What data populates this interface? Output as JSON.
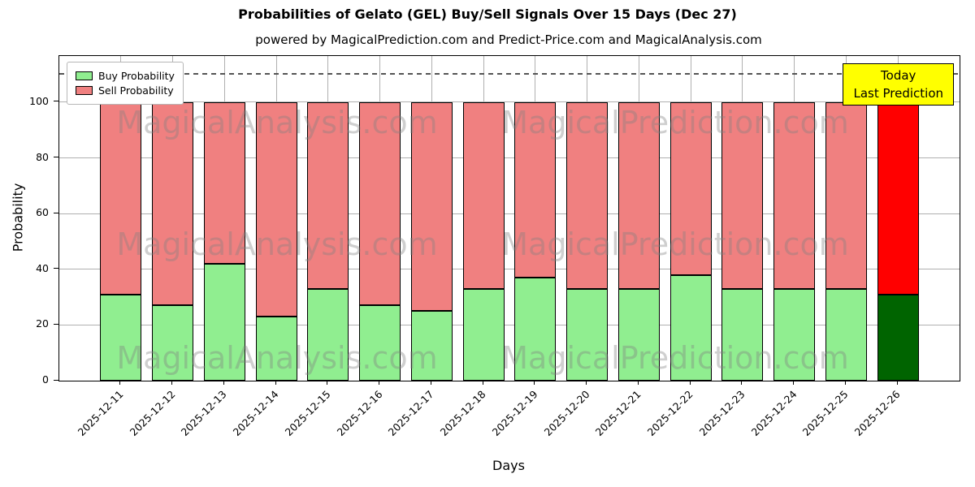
{
  "chart_data": {
    "type": "bar",
    "stacked": true,
    "title": "Probabilities of Gelato (GEL) Buy/Sell Signals Over 15 Days (Dec 27)",
    "subtitle": "powered by MagicalPrediction.com and Predict-Price.com and MagicalAnalysis.com",
    "xlabel": "Days",
    "ylabel": "Probability",
    "categories": [
      "2025-12-11",
      "2025-12-12",
      "2025-12-13",
      "2025-12-14",
      "2025-12-15",
      "2025-12-16",
      "2025-12-17",
      "2025-12-18",
      "2025-12-19",
      "2025-12-20",
      "2025-12-21",
      "2025-12-22",
      "2025-12-23",
      "2025-12-24",
      "2025-12-25",
      "2025-12-26"
    ],
    "series": [
      {
        "name": "Buy Probability",
        "color": "#90ee90",
        "final_bar_color": "#006400",
        "values": [
          31,
          27,
          42,
          23,
          33,
          27,
          25,
          33,
          37,
          33,
          33,
          38,
          33,
          33,
          33,
          31
        ]
      },
      {
        "name": "Sell Probability",
        "color": "#f08080",
        "final_bar_color": "#ff0000",
        "values": [
          69,
          73,
          58,
          77,
          67,
          73,
          75,
          67,
          63,
          67,
          67,
          62,
          67,
          67,
          67,
          69
        ]
      }
    ],
    "ylim": [
      0,
      116.6
    ],
    "yticks": [
      0,
      20,
      40,
      60,
      80,
      100
    ],
    "grid": true,
    "dashed_line_y": 110,
    "legend_position": "upper left"
  },
  "legend": {
    "items": [
      {
        "label": "Buy Probability",
        "color": "#90ee90"
      },
      {
        "label": "Sell Probability",
        "color": "#f08080"
      }
    ]
  },
  "annotation_box": {
    "line1": "Today",
    "line2": "Last Prediction",
    "bg": "#ffff00"
  },
  "watermarks": {
    "left_text": "MagicalAnalysis.com",
    "right_text": "MagicalPrediction.com"
  },
  "colors": {
    "grid": "#b0b0b0",
    "dashed_line": "#555555",
    "bar_edge": "#000000",
    "background": "#ffffff",
    "annotation_bg": "#ffff00"
  }
}
